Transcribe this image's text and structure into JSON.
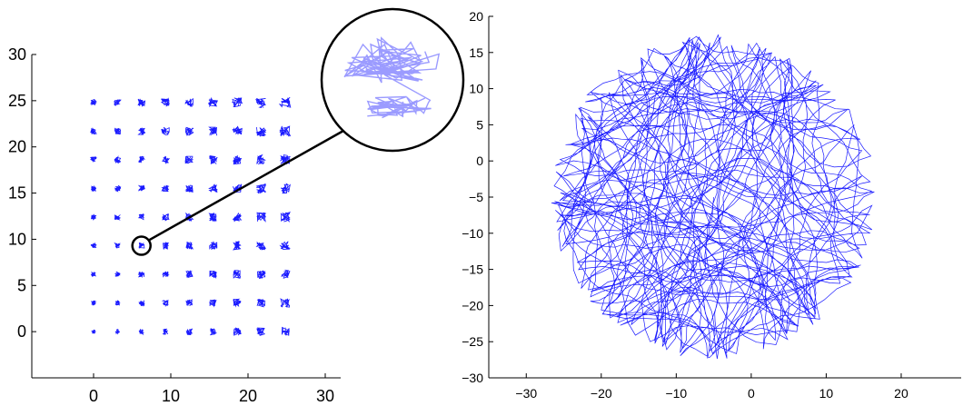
{
  "chart_data": [
    {
      "type": "scatter",
      "title": "",
      "xlabel": "",
      "ylabel": "",
      "xlim": [
        -8,
        32
      ],
      "ylim": [
        -5,
        30
      ],
      "xticks": [
        "0",
        "10",
        "20",
        "30"
      ],
      "yticks": [
        "0",
        "5",
        "10",
        "15",
        "20",
        "25",
        "30"
      ],
      "grid": false,
      "series": [
        {
          "grid_x": [
            0,
            3.1,
            6.2,
            9.3,
            12.4,
            15.5,
            18.6,
            21.7,
            24.8
          ],
          "grid_y": [
            0,
            3.1,
            6.2,
            9.3,
            12.4,
            15.5,
            18.6,
            21.7,
            24.8
          ],
          "color": "#0000ff"
        }
      ],
      "annotation": {
        "highlighted_point": [
          6.2,
          9.3
        ],
        "shape": "circle-zoom-inset"
      }
    },
    {
      "type": "line",
      "title": "",
      "xlabel": "",
      "ylabel": "",
      "xlim": [
        -35,
        28
      ],
      "ylim": [
        -30,
        20
      ],
      "xticks": [
        "−30",
        "−20",
        "−10",
        "0",
        "10",
        "20"
      ],
      "yticks": [
        "−30",
        "−25",
        "−20",
        "−15",
        "−10",
        "−5",
        "0",
        "5",
        "10",
        "15",
        "20"
      ],
      "grid": false,
      "series": [
        {
          "shape": "circular-region-trajectory",
          "center": [
            -5,
            -5
          ],
          "radius": 22.5,
          "color": "#0000ff"
        }
      ]
    }
  ]
}
